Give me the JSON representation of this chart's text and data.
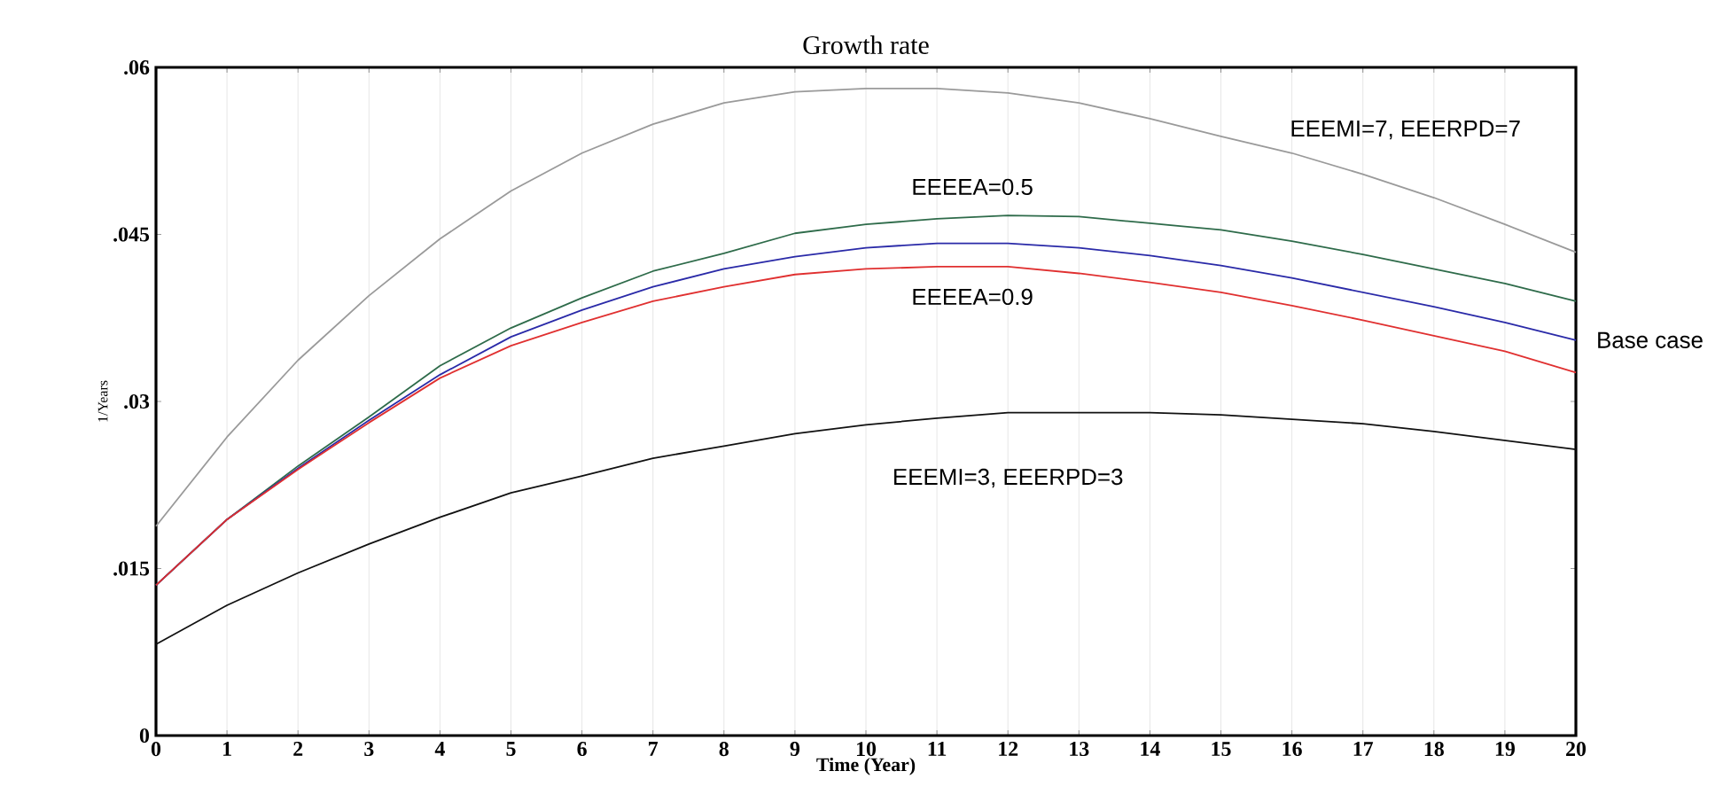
{
  "chart_data": {
    "type": "line",
    "title": "Growth rate",
    "xlabel": "Time (Year)",
    "ylabel": "1/Years",
    "x": [
      0,
      1,
      2,
      3,
      4,
      5,
      6,
      7,
      8,
      9,
      10,
      11,
      12,
      13,
      14,
      15,
      16,
      17,
      18,
      19,
      20
    ],
    "xlim": [
      0,
      20
    ],
    "ylim": [
      0,
      0.06
    ],
    "xticks": [
      0,
      1,
      2,
      3,
      4,
      5,
      6,
      7,
      8,
      9,
      10,
      11,
      12,
      13,
      14,
      15,
      16,
      17,
      18,
      19,
      20
    ],
    "yticks": [
      {
        "value": 0,
        "label": "0"
      },
      {
        "value": 0.015,
        "label": ".015"
      },
      {
        "value": 0.03,
        "label": ".03"
      },
      {
        "value": 0.045,
        "label": ".045"
      },
      {
        "value": 0.06,
        "label": ".06"
      }
    ],
    "grid": "x",
    "marker": "none",
    "line_style": "solid",
    "series": [
      {
        "name": "EEEMI=7, EEERPD=7",
        "color": "#9a9a9a",
        "values": [
          0.0188,
          0.0268,
          0.0337,
          0.0395,
          0.0446,
          0.0489,
          0.0523,
          0.0549,
          0.0568,
          0.0578,
          0.0581,
          0.0581,
          0.0577,
          0.0568,
          0.0554,
          0.0538,
          0.0523,
          0.0504,
          0.0483,
          0.0459,
          0.0434
        ]
      },
      {
        "name": "EEEEA=0.5",
        "color": "#2e6b4a",
        "values": [
          0.0135,
          0.0194,
          0.0242,
          0.0286,
          0.0332,
          0.0366,
          0.0393,
          0.0417,
          0.0433,
          0.0451,
          0.0459,
          0.0464,
          0.0467,
          0.0466,
          0.046,
          0.0454,
          0.0444,
          0.0432,
          0.0419,
          0.0406,
          0.039
        ]
      },
      {
        "name": "Base case",
        "color": "#2a2aa8",
        "values": [
          0.0135,
          0.0194,
          0.024,
          0.0283,
          0.0324,
          0.0358,
          0.0382,
          0.0403,
          0.0419,
          0.043,
          0.0438,
          0.0442,
          0.0442,
          0.0438,
          0.0431,
          0.0422,
          0.0411,
          0.0398,
          0.0385,
          0.0371,
          0.0355
        ]
      },
      {
        "name": "EEEEA=0.9",
        "color": "#e03030",
        "values": [
          0.0135,
          0.0194,
          0.0239,
          0.0281,
          0.0321,
          0.035,
          0.0371,
          0.039,
          0.0403,
          0.0414,
          0.0419,
          0.0421,
          0.0421,
          0.0415,
          0.0407,
          0.0398,
          0.0386,
          0.0373,
          0.0359,
          0.0345,
          0.0326
        ]
      },
      {
        "name": "EEEMI=3, EEERPD=3",
        "color": "#111111",
        "values": [
          0.0082,
          0.0117,
          0.0146,
          0.0172,
          0.0196,
          0.0218,
          0.0233,
          0.0249,
          0.026,
          0.0271,
          0.0279,
          0.0285,
          0.029,
          0.029,
          0.029,
          0.0288,
          0.0284,
          0.028,
          0.0273,
          0.0265,
          0.0257
        ]
      }
    ]
  }
}
